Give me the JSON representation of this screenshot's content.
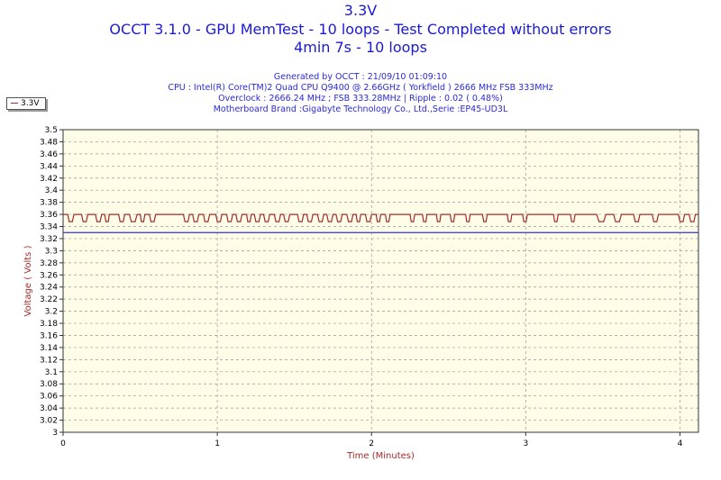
{
  "chart_data": {
    "type": "line",
    "title": "3.3V",
    "subtitle_lines": [
      "OCCT 3.1.0 - GPU MemTest - 10 loops - Test Completed without errors",
      "4min 7s - 10 loops"
    ],
    "info_lines": [
      "Generated by OCCT : 21/09/10 01:09:10",
      "CPU : Intel(R) Core(TM)2 Quad CPU Q9400 @ 2.66GHz ( Yorkfield ) 2666 MHz FSB 333MHz",
      "Overclock : 2666.24 MHz ; FSB 333.28MHz | Ripple : 0.02 ( 0.48%)",
      "Motherboard Brand :Gigabyte Technology Co., Ltd.,Serie :EP45-UD3L"
    ],
    "xlabel": "Time (Minutes)",
    "ylabel": "Voltage ( Volts )",
    "xlim": [
      0,
      4.12
    ],
    "ylim": [
      3.0,
      3.5
    ],
    "x_ticks": [
      "0",
      "1",
      "2",
      "3",
      "4"
    ],
    "y_ticks": [
      "3",
      "3.02",
      "3.04",
      "3.06",
      "3.08",
      "3.1",
      "3.12",
      "3.14",
      "3.16",
      "3.18",
      "3.2",
      "3.22",
      "3.24",
      "3.26",
      "3.28",
      "3.3",
      "3.32",
      "3.34",
      "3.36",
      "3.38",
      "3.4",
      "3.42",
      "3.44",
      "3.46",
      "3.48",
      "3.5"
    ],
    "grid": true,
    "legend_position": "top-left",
    "series": [
      {
        "name": "3.3V",
        "color": "#a52a2a",
        "high": 3.36,
        "low": 3.348,
        "dips": [
          [
            0.03,
            0.07
          ],
          [
            0.12,
            0.16
          ],
          [
            0.21,
            0.25
          ],
          [
            0.27,
            0.3
          ],
          [
            0.36,
            0.4
          ],
          [
            0.43,
            0.48
          ],
          [
            0.5,
            0.53
          ],
          [
            0.56,
            0.6
          ],
          [
            0.78,
            0.82
          ],
          [
            0.84,
            0.88
          ],
          [
            0.91,
            0.95
          ],
          [
            0.99,
            1.03
          ],
          [
            1.06,
            1.1
          ],
          [
            1.12,
            1.16
          ],
          [
            1.19,
            1.22
          ],
          [
            1.24,
            1.28
          ],
          [
            1.3,
            1.34
          ],
          [
            1.37,
            1.41
          ],
          [
            1.43,
            1.47
          ],
          [
            1.52,
            1.56
          ],
          [
            1.58,
            1.62
          ],
          [
            1.65,
            1.69
          ],
          [
            1.71,
            1.75
          ],
          [
            1.77,
            1.81
          ],
          [
            1.84,
            1.88
          ],
          [
            1.9,
            1.93
          ],
          [
            1.96,
            2.0
          ],
          [
            2.03,
            2.06
          ],
          [
            2.09,
            2.12
          ],
          [
            2.25,
            2.28
          ],
          [
            2.33,
            2.36
          ],
          [
            2.42,
            2.45
          ],
          [
            2.51,
            2.54
          ],
          [
            2.61,
            2.64
          ],
          [
            2.72,
            2.75
          ],
          [
            2.88,
            2.91
          ],
          [
            2.98,
            3.01
          ],
          [
            3.18,
            3.21
          ],
          [
            3.29,
            3.32
          ],
          [
            3.46,
            3.52
          ],
          [
            3.57,
            3.62
          ],
          [
            3.7,
            3.74
          ],
          [
            3.82,
            3.86
          ],
          [
            3.99,
            4.03
          ],
          [
            4.06,
            4.1
          ]
        ]
      },
      {
        "name": "",
        "color": "#3333cc",
        "constant": 3.33
      }
    ]
  },
  "colors": {
    "title": "#1a1ad4",
    "plot_bg": "#fffde8",
    "grid": "#999999"
  }
}
